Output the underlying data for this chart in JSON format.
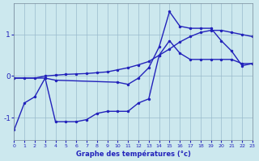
{
  "xlabel": "Graphe des températures (°c)",
  "background_color": "#cce8ee",
  "line_color": "#2222bb",
  "grid_color": "#99bbcc",
  "axis_label_color": "#2222bb",
  "xlim": [
    0,
    23
  ],
  "ylim": [
    -1.55,
    1.75
  ],
  "yticks": [
    -1,
    0,
    1
  ],
  "xticks": [
    0,
    1,
    2,
    3,
    4,
    5,
    6,
    7,
    8,
    9,
    10,
    11,
    12,
    13,
    14,
    15,
    16,
    17,
    18,
    19,
    20,
    21,
    22,
    23
  ],
  "s1_x": [
    0,
    1,
    2,
    3,
    4,
    5,
    6,
    7,
    8,
    9,
    10,
    11,
    12,
    13,
    14,
    15,
    16,
    17,
    18,
    19,
    20,
    21,
    22,
    23
  ],
  "s1_y": [
    -1.3,
    -0.65,
    -0.5,
    -0.05,
    -1.1,
    -1.1,
    -1.1,
    -1.05,
    -0.9,
    -0.85,
    -0.85,
    -0.85,
    -0.65,
    -0.55,
    0.5,
    0.85,
    0.55,
    0.4,
    0.4,
    0.4,
    0.4,
    0.4,
    0.3,
    0.3
  ],
  "s2_x": [
    0,
    1,
    2,
    3,
    4,
    5,
    6,
    7,
    8,
    9,
    10,
    11,
    12,
    13,
    14,
    15,
    16,
    17,
    18,
    19,
    20,
    21,
    22,
    23
  ],
  "s2_y": [
    -0.05,
    -0.05,
    -0.05,
    0.0,
    0.02,
    0.04,
    0.05,
    0.06,
    0.08,
    0.1,
    0.15,
    0.2,
    0.27,
    0.35,
    0.5,
    0.65,
    0.82,
    0.95,
    1.05,
    1.1,
    1.1,
    1.05,
    1.0,
    0.95
  ],
  "s3_x": [
    0,
    3,
    4,
    10,
    11,
    12,
    13,
    14,
    15,
    16,
    17,
    18,
    19,
    20,
    21,
    22,
    23
  ],
  "s3_y": [
    -0.05,
    -0.05,
    -0.1,
    -0.15,
    -0.2,
    -0.05,
    0.2,
    0.7,
    1.55,
    1.2,
    1.15,
    1.15,
    1.15,
    0.85,
    0.6,
    0.25,
    0.3
  ]
}
